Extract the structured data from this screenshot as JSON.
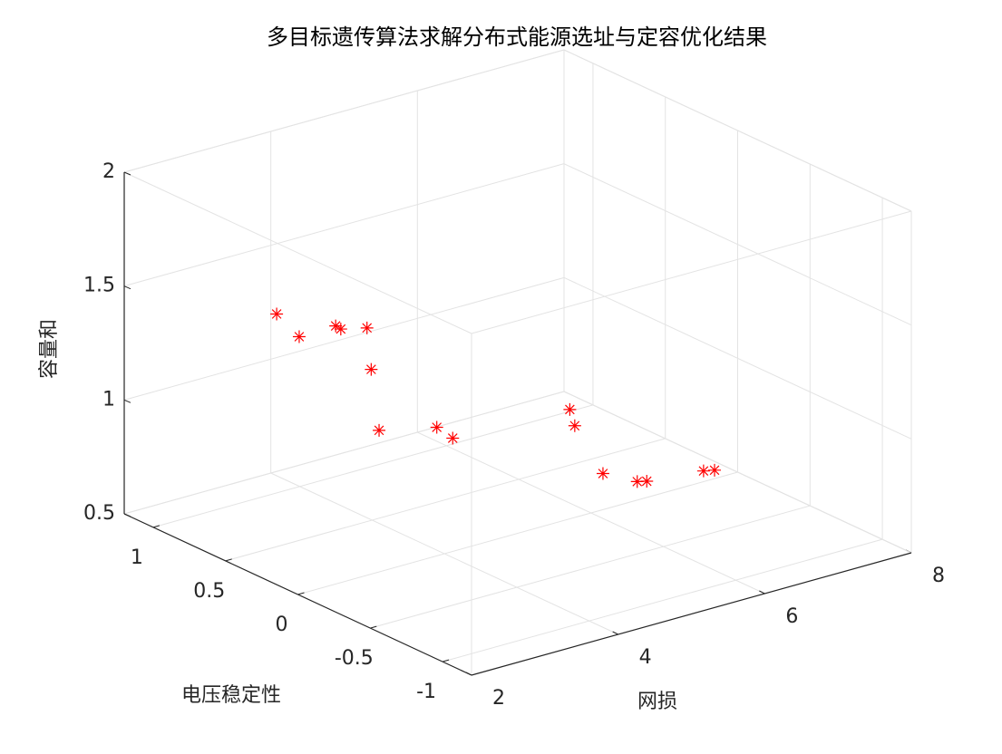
{
  "chart_data": {
    "type": "scatter3",
    "title": "多目标遗传算法求解分布式能源选址与定容优化结果",
    "x_label": "网损",
    "y_label": "电压稳定性",
    "z_label": "容量和",
    "x": [
      3.29,
      3.4,
      3.7,
      3.77,
      3.93,
      3.79,
      3.7,
      4.29,
      4.31,
      5.71,
      5.58,
      5.57,
      5.84,
      5.97,
      6.35,
      6.5
    ],
    "y": [
      0.8,
      0.7,
      0.6,
      0.6,
      0.5,
      0.4,
      0.3,
      0.2,
      0.1,
      0,
      -0.1,
      -0.3,
      -0.4,
      -0.4,
      -0.6,
      -0.6
    ],
    "z": [
      1.38,
      1.3,
      1.35,
      1.33,
      1.35,
      1.21,
      0.98,
      0.97,
      0.95,
      0.98,
      0.95,
      0.8,
      0.77,
      0.76,
      0.83,
      0.82
    ],
    "color": "#ff0000",
    "xlim": [
      2,
      8
    ],
    "ylim": [
      -1.2,
      1.2
    ],
    "zlim": [
      0.5,
      2
    ],
    "xticks": [
      2,
      4,
      6,
      8
    ],
    "yticks": [
      -1,
      -0.5,
      0,
      0.5,
      1
    ],
    "zticks": [
      0.5,
      1,
      1.5,
      2
    ],
    "grid": true
  }
}
